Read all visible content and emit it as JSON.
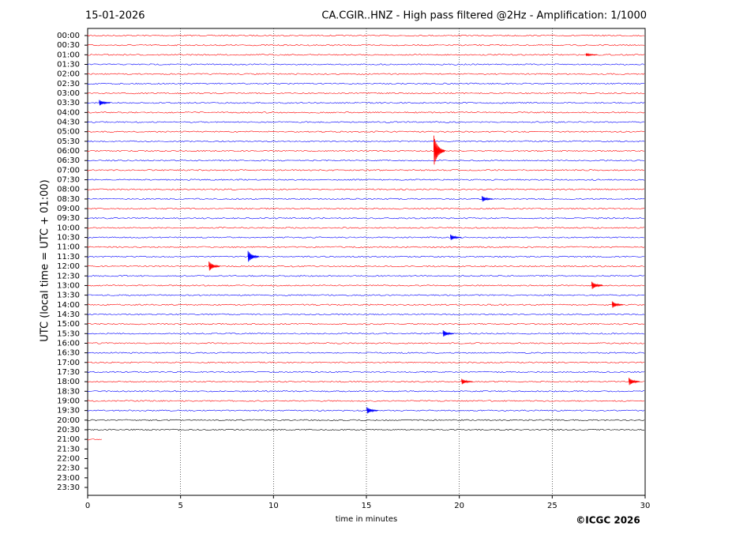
{
  "chart_data": {
    "type": "helicorder",
    "date": "15-01-2026",
    "title": "CA.CGIR..HNZ - High pass filtered @2Hz - Amplification: 1/1000",
    "ylabel": "UTC (local time = UTC + 01:00)",
    "xlabel": "time in minutes",
    "copyright": "©ICGC 2026",
    "categories": [
      "00:00",
      "00:30",
      "01:00",
      "01:30",
      "02:00",
      "02:30",
      "03:00",
      "03:30",
      "04:00",
      "04:30",
      "05:00",
      "05:30",
      "06:00",
      "06:30",
      "07:00",
      "07:30",
      "08:00",
      "08:30",
      "09:00",
      "09:30",
      "10:00",
      "10:30",
      "11:00",
      "11:30",
      "12:00",
      "12:30",
      "13:00",
      "13:30",
      "14:00",
      "14:30",
      "15:00",
      "15:30",
      "16:00",
      "16:30",
      "17:00",
      "17:30",
      "18:00",
      "18:30",
      "19:00",
      "19:30",
      "20:00",
      "20:30",
      "21:00",
      "21:30",
      "22:00",
      "22:30",
      "23:00",
      "23:30"
    ],
    "colors": [
      "#ff0000",
      "#ff0000",
      "#ff0000",
      "#0000ff",
      "#ff0000",
      "#0000ff",
      "#ff0000",
      "#0000ff",
      "#ff0000",
      "#0000ff",
      "#ff0000",
      "#0000ff",
      "#ff0000",
      "#0000ff",
      "#ff0000",
      "#0000ff",
      "#ff0000",
      "#0000ff",
      "#ff0000",
      "#0000ff",
      "#ff0000",
      "#0000ff",
      "#ff0000",
      "#0000ff",
      "#ff0000",
      "#0000ff",
      "#ff0000",
      "#0000ff",
      "#ff0000",
      "#0000ff",
      "#ff0000",
      "#0000ff",
      "#ff0000",
      "#0000ff",
      "#ff0000",
      "#0000ff",
      "#ff0000",
      "#0000ff",
      "#ff0000",
      "#0000ff",
      "#000000",
      "#000000",
      "#ff0000",
      "#0000ff",
      "#ff0000",
      "#0000ff",
      "#ff0000",
      "#0000ff"
    ],
    "trace_end": [
      30,
      30,
      30,
      30,
      30,
      30,
      30,
      30,
      30,
      30,
      30,
      30,
      30,
      30,
      30,
      30,
      30,
      30,
      30,
      30,
      30,
      30,
      30,
      30,
      30,
      30,
      30,
      30,
      30,
      30,
      30,
      30,
      30,
      30,
      30,
      30,
      30,
      30,
      30,
      30,
      30,
      30,
      0.8,
      null,
      null,
      null,
      null,
      null
    ],
    "events": [
      {
        "row": 12,
        "x": 18.8,
        "amp": 1.6
      },
      {
        "row": 23,
        "x": 8.8,
        "amp": 0.6
      },
      {
        "row": 24,
        "x": 6.7,
        "amp": 0.5
      },
      {
        "row": 26,
        "x": 27.3,
        "amp": 0.4
      },
      {
        "row": 36,
        "x": 29.3,
        "amp": 0.4
      },
      {
        "row": 36,
        "x": 20.3,
        "amp": 0.3
      },
      {
        "row": 39,
        "x": 15.2,
        "amp": 0.35
      },
      {
        "row": 7,
        "x": 0.8,
        "amp": 0.3
      },
      {
        "row": 17,
        "x": 21.4,
        "amp": 0.3
      },
      {
        "row": 31,
        "x": 19.3,
        "amp": 0.35
      },
      {
        "row": 21,
        "x": 19.7,
        "amp": 0.3
      },
      {
        "row": 28,
        "x": 28.4,
        "amp": 0.35
      },
      {
        "row": 2,
        "x": 27.0,
        "amp": 0.15
      }
    ],
    "xlim": [
      0,
      30
    ],
    "xticks": [
      0,
      5,
      10,
      15,
      20,
      25,
      30
    ],
    "grid": true
  }
}
